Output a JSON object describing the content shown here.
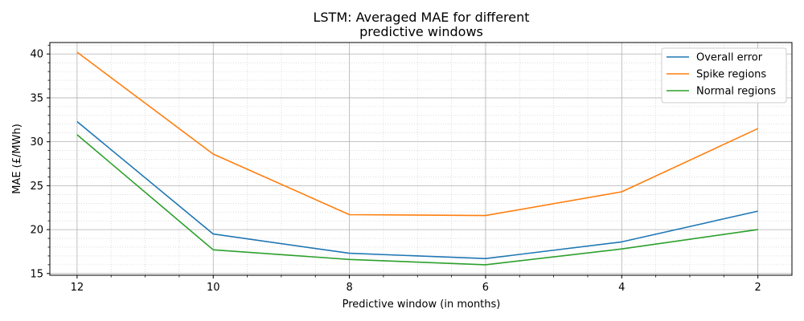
{
  "chart_data": {
    "type": "line",
    "title_lines": [
      "LSTM: Averaged MAE for different",
      "predictive windows"
    ],
    "xlabel": "Predictive window (in months)",
    "ylabel": "MAE (£/MWh)",
    "x": [
      12,
      10,
      8,
      6,
      4,
      2
    ],
    "x_ticks": [
      12,
      10,
      8,
      6,
      4,
      2
    ],
    "x_reversed": true,
    "xlim": [
      12.4,
      1.5
    ],
    "y_ticks": [
      15,
      20,
      25,
      30,
      35,
      40
    ],
    "ylim": [
      14.8,
      41.3
    ],
    "grid": "major and minor",
    "legend_position": "top-right",
    "series": [
      {
        "name": "Overall error",
        "color": "#1f77b4",
        "values": [
          32.3,
          19.5,
          17.3,
          16.7,
          18.6,
          22.1
        ]
      },
      {
        "name": "Spike regions",
        "color": "#ff7f0e",
        "values": [
          40.2,
          28.6,
          21.7,
          21.6,
          24.3,
          31.5
        ]
      },
      {
        "name": "Normal regions",
        "color": "#2ca02c",
        "values": [
          30.8,
          17.7,
          16.6,
          16.0,
          17.8,
          20.0
        ]
      }
    ]
  }
}
